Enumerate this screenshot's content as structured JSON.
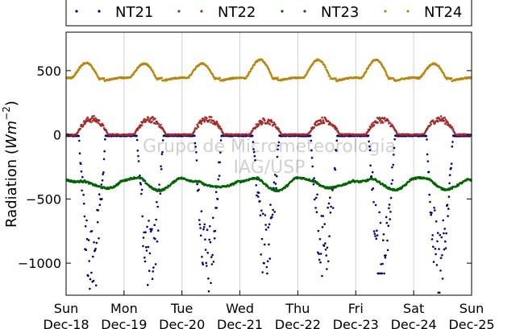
{
  "chart_data": {
    "type": "scatter",
    "title": "",
    "xlabel": "",
    "ylabel": "Radiation (Wm⁻²)",
    "ylabel_prefix": "Radiation (",
    "ylabel_unit": "Wm",
    "ylabel_exp": "−2",
    "ylabel_suffix": ")",
    "xlim": [
      0,
      7
    ],
    "ylim": [
      -1250,
      800
    ],
    "yticks": [
      500,
      0,
      -500,
      -1000
    ],
    "ytick_labels": [
      "500",
      "0",
      "−500",
      "−1000"
    ],
    "xticks": [
      {
        "day": "Sun",
        "date": "Dec-18"
      },
      {
        "day": "Mon",
        "date": "Dec-19"
      },
      {
        "day": "Tue",
        "date": "Dec-20"
      },
      {
        "day": "Wed",
        "date": "Dec-21"
      },
      {
        "day": "Thu",
        "date": "Dec-22"
      },
      {
        "day": "Fri",
        "date": "Dec-23"
      },
      {
        "day": "Sat",
        "date": "Dec-24"
      },
      {
        "day": "Sun",
        "date": "Dec-25"
      }
    ],
    "grid": "vertical",
    "legend_position": "top",
    "watermark": [
      "Grupo de Micrometeorologia",
      "IAG/USP"
    ],
    "series": [
      {
        "name": "NT21",
        "color": "#000080",
        "marker": "dot",
        "description": "night ~0, daytime dips",
        "daily_min": [
          -1200,
          -1170,
          -1220,
          -1080,
          -1100,
          -1080,
          -1230
        ]
      },
      {
        "name": "NT22",
        "color": "#a52a2a",
        "marker": "dot",
        "description": "night ~0, daytime peaks",
        "daily_max": [
          130,
          125,
          130,
          115,
          120,
          125,
          130
        ]
      },
      {
        "name": "NT23",
        "color": "#006400",
        "marker": "dot",
        "description": "baseline about -350 to -430",
        "values_mean": -385
      },
      {
        "name": "NT24",
        "color": "#b8860b",
        "marker": "dot",
        "description": "night ~430, daytime peak",
        "daily_max": [
          560,
          555,
          555,
          585,
          585,
          585,
          555
        ]
      }
    ]
  }
}
